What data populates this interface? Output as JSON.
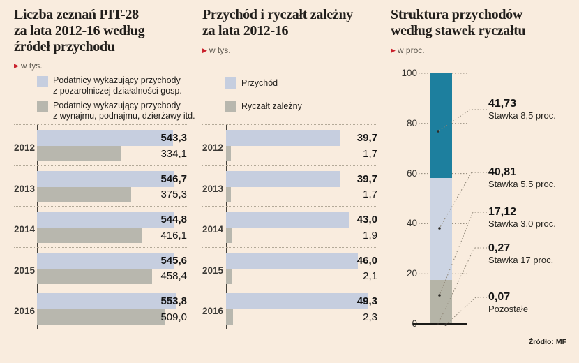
{
  "source": "Źródło: MF",
  "colors": {
    "background": "#f9ecde",
    "accent_red": "#c9202b",
    "bar_blue": "#c6cedf",
    "bar_gray": "#b8b7ae",
    "stack_teal": "#1d7f9e",
    "stack_blue": "#ccd4e3",
    "stack_gray": "#b5b4a7"
  },
  "chart_data": [
    {
      "type": "bar",
      "orientation": "horizontal",
      "title_lines": [
        "Liczba zeznań PIT-28",
        "za lata 2012-16 według",
        "źródeł przychodu"
      ],
      "unit": "w tys.",
      "legend": [
        {
          "swatch": "bar_blue",
          "lines": [
            "Podatnicy wykazujący przychody",
            "z pozarolniczej działalności gosp."
          ]
        },
        {
          "swatch": "bar_gray",
          "lines": [
            "Podatnicy wykazujący przychody",
            "z wynajmu, podnajmu, dzierżawy itd."
          ]
        }
      ],
      "categories": [
        "2012",
        "2013",
        "2014",
        "2015",
        "2016"
      ],
      "series": [
        {
          "name": "Podatnicy wykazujący przychody z pozarolniczej działalności gosp.",
          "values": [
            543.3,
            546.7,
            544.8,
            545.6,
            553.8
          ],
          "labels": [
            "543,3",
            "546,7",
            "544,8",
            "545,6",
            "553,8"
          ]
        },
        {
          "name": "Podatnicy wykazujący przychody z wynajmu, podnajmu, dzierżawy itd.",
          "values": [
            334.1,
            375.3,
            416.1,
            458.4,
            509.0
          ],
          "labels": [
            "334,1",
            "375,3",
            "416,1",
            "458,4",
            "509,0"
          ]
        }
      ],
      "xlim": [
        0,
        560
      ]
    },
    {
      "type": "bar",
      "orientation": "horizontal",
      "title_lines": [
        "Przychód i ryczałt zależny",
        "za lata 2012-16"
      ],
      "unit": "w tys.",
      "legend": [
        {
          "swatch": "bar_blue",
          "lines": [
            "Przychód"
          ]
        },
        {
          "swatch": "bar_gray",
          "lines": [
            "Ryczałt zależny"
          ]
        }
      ],
      "categories": [
        "2012",
        "2013",
        "2014",
        "2015",
        "2016"
      ],
      "series": [
        {
          "name": "Przychód",
          "values": [
            39.7,
            39.7,
            43.0,
            46.0,
            49.3
          ],
          "labels": [
            "39,7",
            "39,7",
            "43,0",
            "46,0",
            "49,3"
          ]
        },
        {
          "name": "Ryczałt zależny",
          "values": [
            1.7,
            1.7,
            1.9,
            2.1,
            2.3
          ],
          "labels": [
            "1,7",
            "1,7",
            "1,9",
            "2,1",
            "2,3"
          ]
        }
      ],
      "xlim": [
        0,
        50
      ]
    },
    {
      "type": "stacked-bar",
      "orientation": "vertical",
      "title_lines": [
        "Struktura przychodów",
        "według stawek ryczałtu"
      ],
      "unit": "w proc.",
      "ylim": [
        0,
        100
      ],
      "yticks": [
        100,
        80,
        60,
        40,
        20,
        0
      ],
      "segments": [
        {
          "value": 41.73,
          "label": "41,73",
          "sublabel": "Stawka 8,5 proc.",
          "color_key": "stack_teal"
        },
        {
          "value": 40.81,
          "label": "40,81",
          "sublabel": "Stawka 5,5 proc.",
          "color_key": "stack_blue"
        },
        {
          "value": 17.12,
          "label": "17,12",
          "sublabel": "Stawka 3,0 proc.",
          "color_key": "stack_gray"
        },
        {
          "value": 0.27,
          "label": "0,27",
          "sublabel": "Stawka 17 proc.",
          "color_key": "stack_gray"
        },
        {
          "value": 0.07,
          "label": "0,07",
          "sublabel": "Pozostałe",
          "color_key": "stack_gray"
        }
      ]
    }
  ]
}
